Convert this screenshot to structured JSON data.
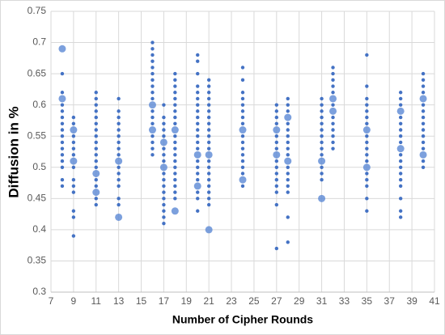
{
  "chart_data": {
    "type": "scatter",
    "x_label": "Number of Cipher Rounds",
    "y_label": "Diffusion in %",
    "xlim": [
      7,
      41
    ],
    "xticks": [
      7,
      9,
      11,
      13,
      15,
      17,
      19,
      21,
      23,
      25,
      27,
      29,
      31,
      33,
      35,
      37,
      39,
      41
    ],
    "ylim": [
      0.3,
      0.75
    ],
    "yticks": [
      0.3,
      0.35,
      0.4,
      0.45,
      0.5,
      0.55,
      0.6,
      0.65,
      0.7,
      0.75
    ],
    "grid": true,
    "series": [
      {
        "color": "#4472c4",
        "size": 2.2,
        "x": [
          8,
          8,
          8,
          8,
          8,
          8,
          8,
          8,
          8,
          8,
          8,
          8,
          8,
          8,
          8,
          9,
          9,
          9,
          9,
          9,
          9,
          9,
          9,
          9,
          9,
          9,
          9,
          9,
          11,
          11,
          11,
          11,
          11,
          11,
          11,
          11,
          11,
          11,
          11,
          11,
          11,
          11,
          11,
          11,
          11,
          13,
          13,
          13,
          13,
          13,
          13,
          13,
          13,
          13,
          13,
          13,
          13,
          13,
          13,
          13,
          16,
          16,
          16,
          16,
          16,
          16,
          16,
          16,
          16,
          16,
          16,
          16,
          16,
          16,
          16,
          16,
          16,
          17,
          17,
          17,
          17,
          17,
          17,
          17,
          17,
          17,
          17,
          17,
          17,
          17,
          17,
          17,
          17,
          17,
          18,
          18,
          18,
          18,
          18,
          18,
          18,
          18,
          18,
          18,
          18,
          18,
          18,
          18,
          18,
          18,
          18,
          18,
          18,
          18,
          20,
          20,
          20,
          20,
          20,
          20,
          20,
          20,
          20,
          20,
          20,
          20,
          20,
          20,
          20,
          20,
          20,
          20,
          20,
          20,
          20,
          21,
          21,
          21,
          21,
          21,
          21,
          21,
          21,
          21,
          21,
          21,
          21,
          21,
          21,
          21,
          21,
          21,
          21,
          21,
          21,
          24,
          24,
          24,
          24,
          24,
          24,
          24,
          24,
          24,
          24,
          24,
          24,
          24,
          24,
          24,
          24,
          27,
          27,
          27,
          27,
          27,
          27,
          27,
          27,
          27,
          27,
          27,
          27,
          27,
          27,
          27,
          28,
          28,
          28,
          28,
          28,
          28,
          28,
          28,
          28,
          28,
          28,
          28,
          28,
          28,
          28,
          28,
          31,
          31,
          31,
          31,
          31,
          31,
          31,
          31,
          31,
          31,
          31,
          31,
          31,
          32,
          32,
          32,
          32,
          32,
          32,
          32,
          32,
          32,
          32,
          32,
          32,
          35,
          35,
          35,
          35,
          35,
          35,
          35,
          35,
          35,
          35,
          35,
          35,
          35,
          35,
          35,
          35,
          35,
          38,
          38,
          38,
          38,
          38,
          38,
          38,
          38,
          38,
          38,
          38,
          38,
          38,
          38,
          38,
          38,
          38,
          40,
          40,
          40,
          40,
          40,
          40,
          40,
          40,
          40,
          40,
          40,
          40,
          40,
          40
        ],
        "values": [
          0.47,
          0.48,
          0.5,
          0.51,
          0.52,
          0.53,
          0.54,
          0.55,
          0.56,
          0.57,
          0.58,
          0.59,
          0.6,
          0.62,
          0.65,
          0.39,
          0.42,
          0.43,
          0.46,
          0.47,
          0.48,
          0.5,
          0.52,
          0.53,
          0.54,
          0.55,
          0.57,
          0.58,
          0.44,
          0.45,
          0.47,
          0.48,
          0.5,
          0.51,
          0.52,
          0.53,
          0.54,
          0.55,
          0.56,
          0.57,
          0.58,
          0.59,
          0.6,
          0.61,
          0.62,
          0.44,
          0.45,
          0.47,
          0.48,
          0.49,
          0.5,
          0.52,
          0.53,
          0.54,
          0.55,
          0.56,
          0.57,
          0.58,
          0.59,
          0.61,
          0.52,
          0.53,
          0.54,
          0.55,
          0.57,
          0.58,
          0.59,
          0.61,
          0.62,
          0.63,
          0.64,
          0.65,
          0.66,
          0.67,
          0.68,
          0.69,
          0.7,
          0.41,
          0.42,
          0.43,
          0.44,
          0.45,
          0.46,
          0.47,
          0.48,
          0.49,
          0.51,
          0.52,
          0.53,
          0.55,
          0.56,
          0.57,
          0.58,
          0.6,
          0.45,
          0.46,
          0.47,
          0.48,
          0.49,
          0.5,
          0.51,
          0.52,
          0.53,
          0.54,
          0.55,
          0.57,
          0.58,
          0.59,
          0.6,
          0.61,
          0.62,
          0.63,
          0.64,
          0.65,
          0.43,
          0.45,
          0.46,
          0.48,
          0.49,
          0.5,
          0.51,
          0.53,
          0.54,
          0.55,
          0.56,
          0.57,
          0.58,
          0.59,
          0.6,
          0.61,
          0.62,
          0.63,
          0.65,
          0.67,
          0.68,
          0.44,
          0.45,
          0.46,
          0.47,
          0.48,
          0.49,
          0.5,
          0.51,
          0.53,
          0.54,
          0.55,
          0.56,
          0.57,
          0.58,
          0.59,
          0.6,
          0.61,
          0.62,
          0.63,
          0.64,
          0.47,
          0.49,
          0.5,
          0.51,
          0.52,
          0.53,
          0.54,
          0.55,
          0.57,
          0.58,
          0.59,
          0.6,
          0.61,
          0.62,
          0.64,
          0.66,
          0.37,
          0.44,
          0.46,
          0.47,
          0.48,
          0.49,
          0.5,
          0.51,
          0.53,
          0.54,
          0.55,
          0.57,
          0.58,
          0.59,
          0.6,
          0.38,
          0.42,
          0.46,
          0.47,
          0.48,
          0.49,
          0.5,
          0.52,
          0.53,
          0.54,
          0.55,
          0.56,
          0.57,
          0.59,
          0.6,
          0.61,
          0.48,
          0.49,
          0.5,
          0.52,
          0.53,
          0.54,
          0.55,
          0.56,
          0.57,
          0.58,
          0.59,
          0.6,
          0.61,
          0.53,
          0.54,
          0.55,
          0.56,
          0.57,
          0.58,
          0.6,
          0.62,
          0.63,
          0.64,
          0.65,
          0.66,
          0.43,
          0.45,
          0.47,
          0.48,
          0.49,
          0.51,
          0.52,
          0.53,
          0.54,
          0.55,
          0.57,
          0.58,
          0.59,
          0.6,
          0.61,
          0.63,
          0.68,
          0.42,
          0.43,
          0.45,
          0.47,
          0.48,
          0.49,
          0.5,
          0.51,
          0.52,
          0.54,
          0.55,
          0.56,
          0.57,
          0.58,
          0.6,
          0.61,
          0.62,
          0.5,
          0.51,
          0.53,
          0.54,
          0.55,
          0.56,
          0.57,
          0.58,
          0.59,
          0.6,
          0.62,
          0.63,
          0.64,
          0.65
        ]
      },
      {
        "color": "#5b88d4",
        "size": 4.5,
        "x": [
          8,
          8,
          9,
          9,
          11,
          11,
          13,
          13,
          16,
          16,
          17,
          17,
          18,
          18,
          20,
          20,
          21,
          21,
          24,
          24,
          27,
          27,
          28,
          28,
          31,
          31,
          32,
          32,
          35,
          35,
          38,
          38,
          40,
          40
        ],
        "values": [
          0.69,
          0.61,
          0.56,
          0.51,
          0.49,
          0.46,
          0.42,
          0.51,
          0.56,
          0.6,
          0.54,
          0.5,
          0.43,
          0.56,
          0.47,
          0.52,
          0.4,
          0.52,
          0.48,
          0.56,
          0.56,
          0.52,
          0.58,
          0.51,
          0.45,
          0.51,
          0.61,
          0.59,
          0.5,
          0.56,
          0.59,
          0.53,
          0.61,
          0.52
        ]
      }
    ]
  }
}
